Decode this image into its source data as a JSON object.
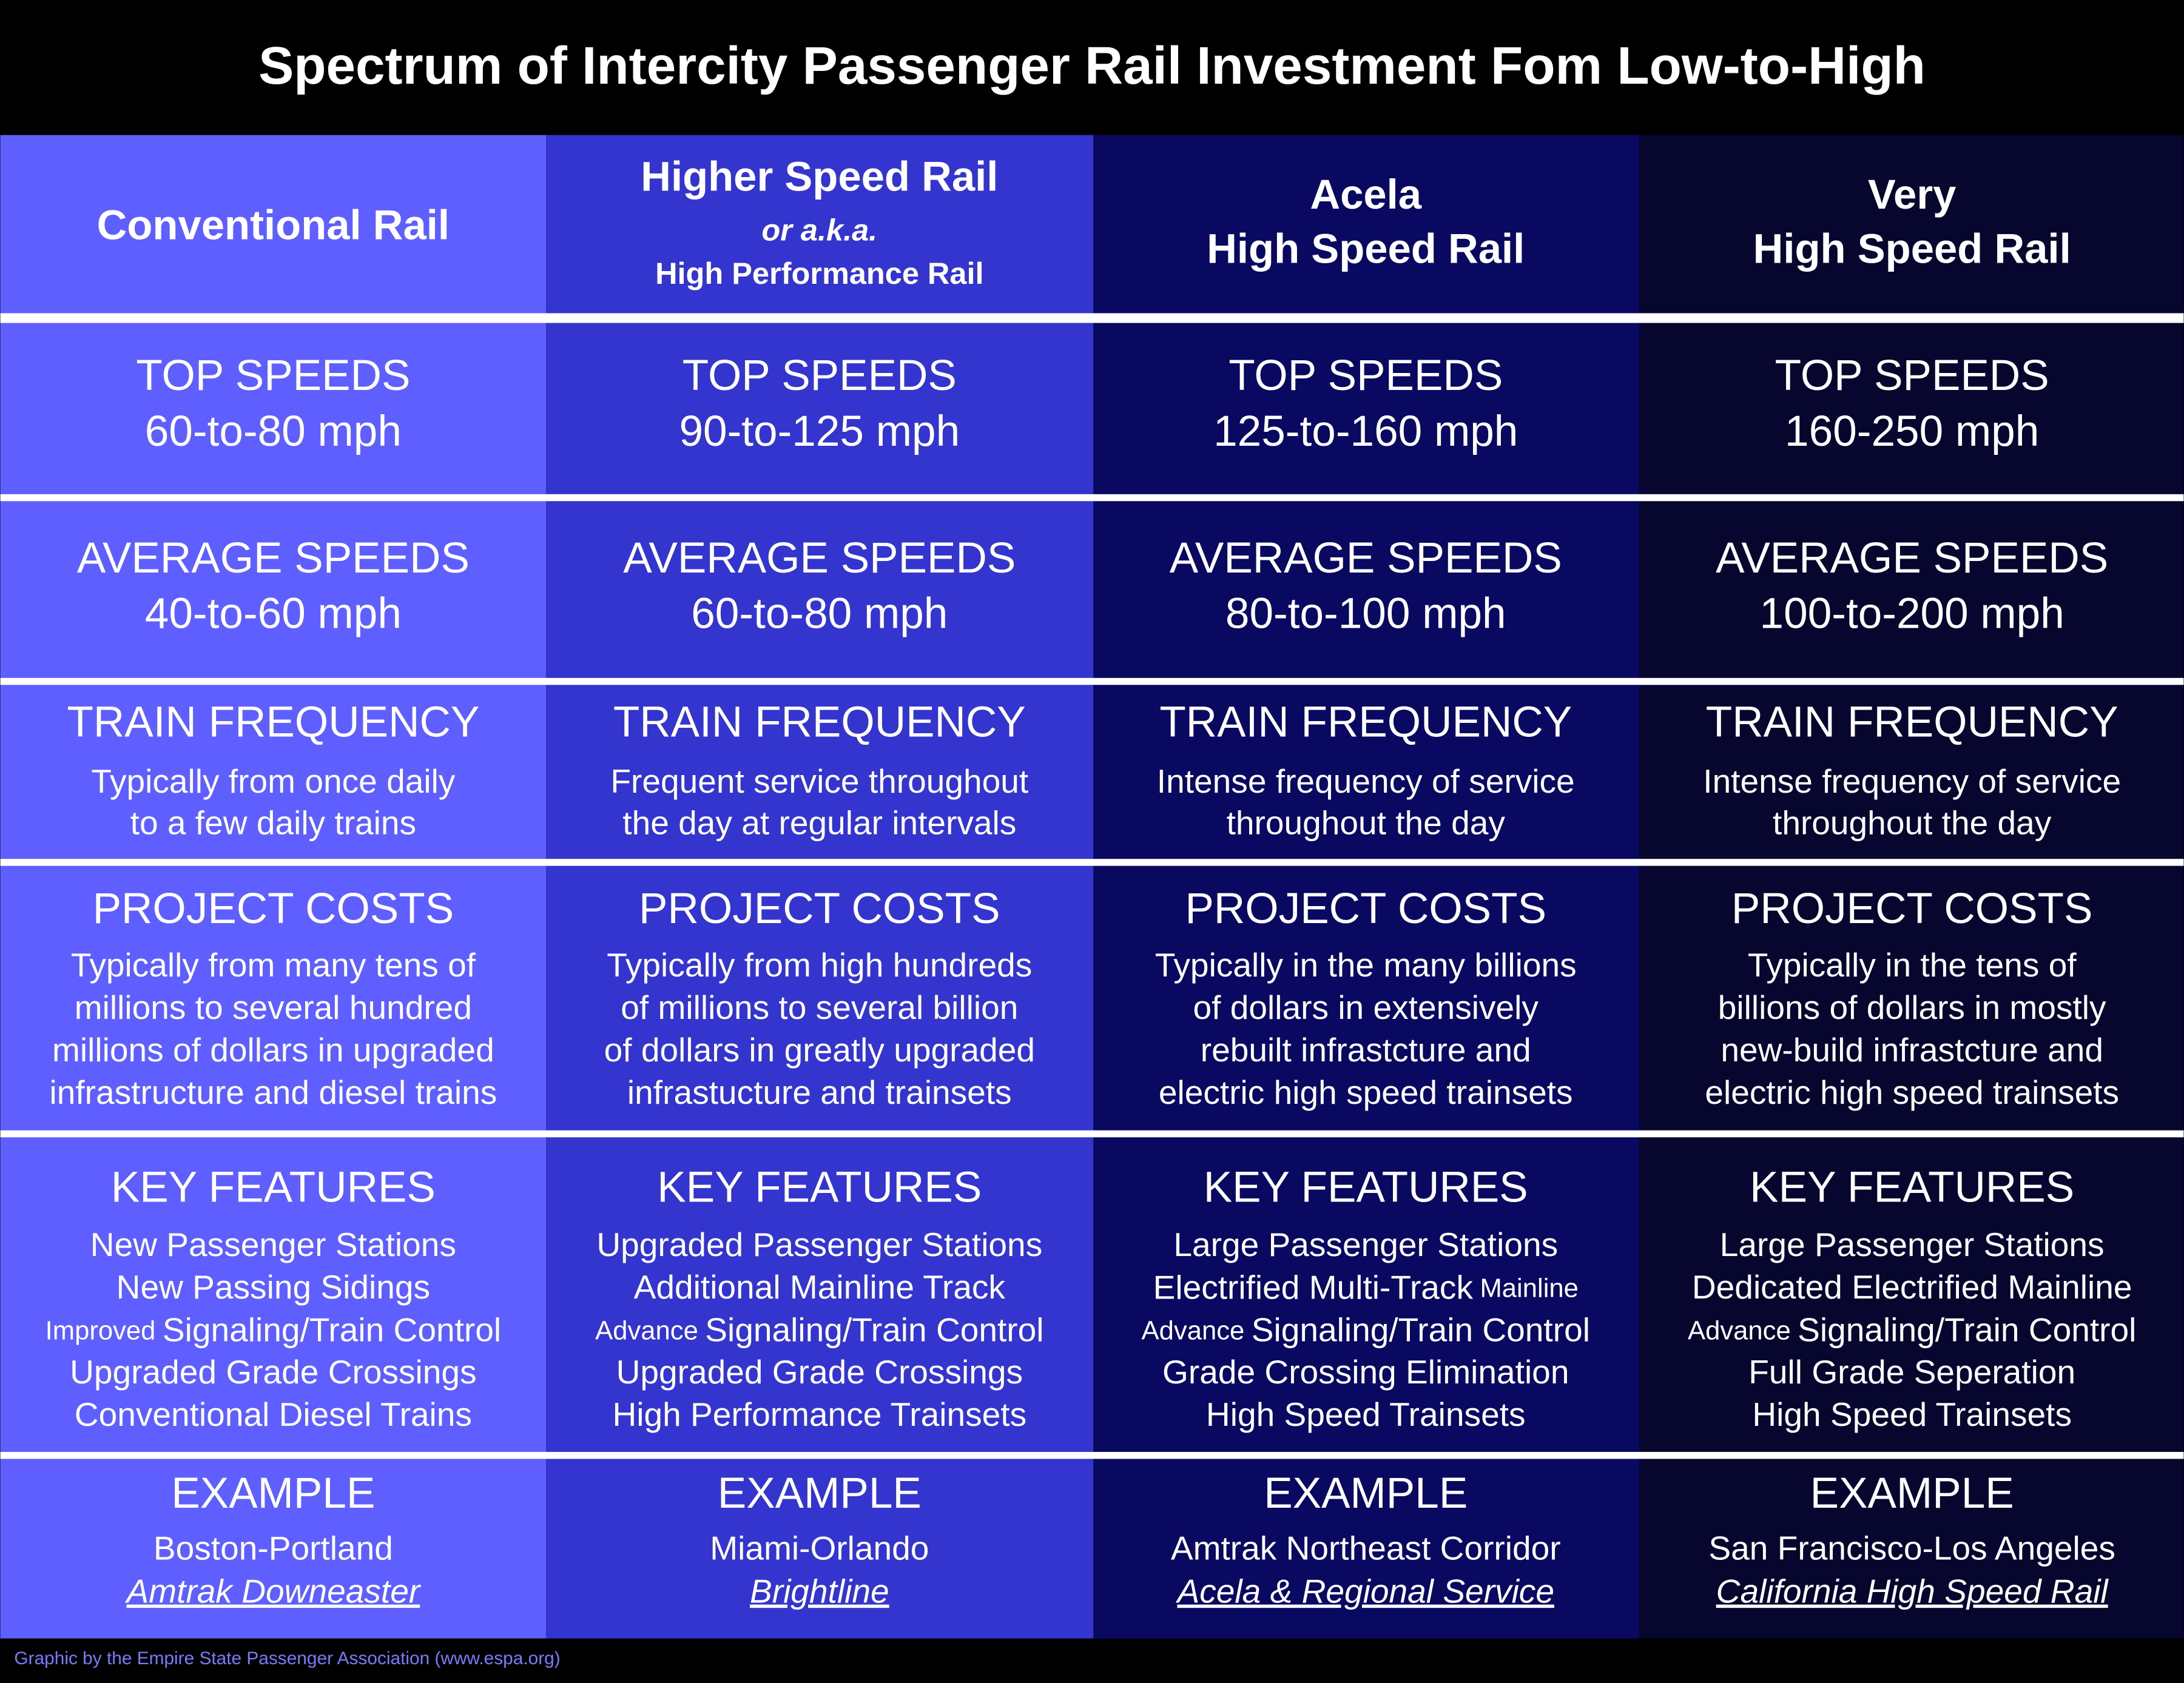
{
  "title": "Spectrum of Intercity Passenger Rail Investment Fom Low-to-High",
  "credit": "Graphic by the Empire State Passenger Association (www.espa.org)",
  "columns": [
    {
      "header": [
        "Conventional Rail"
      ],
      "top_speeds": {
        "heading": "TOP SPEEDS",
        "lines": [
          "60-to-80 mph"
        ]
      },
      "average_speeds": {
        "heading": "AVERAGE SPEEDS",
        "lines": [
          "40-to-60 mph"
        ]
      },
      "train_frequency": {
        "heading": "TRAIN FREQUENCY",
        "lines": [
          "Typically from once daily",
          "to a few daily trains"
        ]
      },
      "project_costs": {
        "heading": "PROJECT COSTS",
        "lines": [
          "Typically from many tens of",
          "millions to several hundred",
          "millions of dollars in upgraded",
          "infrastructure and diesel trains"
        ]
      },
      "key_features": {
        "heading": "KEY FEATURES",
        "lines": [
          "New Passenger Stations",
          "New Passing Sidings",
          {
            "prefix": "Improved",
            "text": "Signaling/Train Control"
          },
          "Upgraded Grade Crossings",
          "Conventional Diesel Trains"
        ]
      },
      "example": {
        "heading": "EXAMPLE",
        "route": "Boston-Portland",
        "service": "Amtrak Downeaster"
      }
    },
    {
      "header": [
        "Higher Speed Rail",
        "or a.k.a.",
        "High Performance Rail"
      ],
      "top_speeds": {
        "heading": "TOP SPEEDS",
        "lines": [
          "90-to-125 mph"
        ]
      },
      "average_speeds": {
        "heading": "AVERAGE SPEEDS",
        "lines": [
          "60-to-80 mph"
        ]
      },
      "train_frequency": {
        "heading": "TRAIN FREQUENCY",
        "lines": [
          "Frequent service throughout",
          "the day at regular intervals"
        ]
      },
      "project_costs": {
        "heading": "PROJECT COSTS",
        "lines": [
          "Typically from high hundreds",
          "of millions to several billion",
          "of dollars in greatly upgraded",
          "infrastucture and trainsets"
        ]
      },
      "key_features": {
        "heading": "KEY FEATURES",
        "lines": [
          "Upgraded Passenger Stations",
          "Additional Mainline Track",
          {
            "prefix": "Advance",
            "text": "Signaling/Train Control"
          },
          "Upgraded Grade Crossings",
          "High Performance Trainsets"
        ]
      },
      "example": {
        "heading": "EXAMPLE",
        "route": "Miami-Orlando",
        "service": "Brightline"
      }
    },
    {
      "header": [
        "Acela",
        "High Speed Rail"
      ],
      "top_speeds": {
        "heading": "TOP SPEEDS",
        "lines": [
          "125-to-160 mph"
        ]
      },
      "average_speeds": {
        "heading": "AVERAGE SPEEDS",
        "lines": [
          "80-to-100 mph"
        ]
      },
      "train_frequency": {
        "heading": "TRAIN FREQUENCY",
        "lines": [
          "Intense frequency of service",
          "throughout the day"
        ]
      },
      "project_costs": {
        "heading": "PROJECT COSTS",
        "lines": [
          "Typically in the many billions",
          "of dollars in extensively",
          "rebuilt infrastcture and",
          "electric high speed trainsets"
        ]
      },
      "key_features": {
        "heading": "KEY FEATURES",
        "lines": [
          "Large Passenger Stations",
          {
            "text": "Electrified Multi-Track",
            "suffix": "Mainline"
          },
          {
            "prefix": "Advance",
            "text": "Signaling/Train Control"
          },
          "Grade Crossing Elimination",
          "High Speed Trainsets"
        ]
      },
      "example": {
        "heading": "EXAMPLE",
        "route": "Amtrak Northeast Corridor",
        "service": "Acela & Regional Service"
      }
    },
    {
      "header": [
        "Very",
        "High Speed Rail"
      ],
      "top_speeds": {
        "heading": "TOP SPEEDS",
        "lines": [
          "160-250 mph"
        ]
      },
      "average_speeds": {
        "heading": "AVERAGE SPEEDS",
        "lines": [
          "100-to-200 mph"
        ]
      },
      "train_frequency": {
        "heading": "TRAIN FREQUENCY",
        "lines": [
          "Intense frequency of service",
          "throughout the day"
        ]
      },
      "project_costs": {
        "heading": "PROJECT COSTS",
        "lines": [
          "Typically in the tens of",
          "billions of dollars in mostly",
          "new-build infrastcture and",
          "electric high speed trainsets"
        ]
      },
      "key_features": {
        "heading": "KEY FEATURES",
        "lines": [
          "Large Passenger Stations",
          "Dedicated Electrified Mainline",
          {
            "prefix": "Advance",
            "text": "Signaling/Train Control"
          },
          "Full Grade Seperation",
          "High Speed Trainsets"
        ]
      },
      "example": {
        "heading": "EXAMPLE",
        "route": "San Francisco-Los Angeles",
        "service": "California High Speed Rail"
      }
    }
  ]
}
